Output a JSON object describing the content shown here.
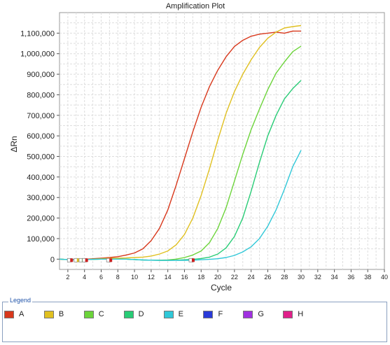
{
  "chart_data": {
    "type": "line",
    "title": "Amplification Plot",
    "xlabel": "Cycle",
    "ylabel": "ΔRn",
    "xlim": [
      1,
      40
    ],
    "ylim": [
      -50000,
      1200000
    ],
    "x_ticks": [
      2,
      4,
      6,
      8,
      10,
      12,
      14,
      16,
      18,
      20,
      22,
      24,
      26,
      28,
      30,
      32,
      34,
      36,
      38,
      40
    ],
    "y_ticks": [
      0,
      100000,
      200000,
      300000,
      400000,
      500000,
      600000,
      700000,
      800000,
      900000,
      1000000,
      1100000
    ],
    "y_tick_labels": [
      "0",
      "100,000",
      "200,000",
      "300,000",
      "400,000",
      "500,000",
      "600,000",
      "700,000",
      "800,000",
      "900,000",
      "1,000,000",
      "1,100,000"
    ],
    "grid": true,
    "x": [
      1,
      2,
      3,
      4,
      5,
      6,
      7,
      8,
      9,
      10,
      11,
      12,
      13,
      14,
      15,
      16,
      17,
      18,
      19,
      20,
      21,
      22,
      23,
      24,
      25,
      26,
      27,
      28,
      29,
      30
    ],
    "series": [
      {
        "name": "A",
        "color": "#d8381c",
        "values": [
          0,
          -2000,
          -3000,
          -1000,
          2000,
          5000,
          8000,
          12000,
          20000,
          30000,
          50000,
          90000,
          150000,
          240000,
          360000,
          490000,
          620000,
          740000,
          840000,
          920000,
          985000,
          1035000,
          1065000,
          1085000,
          1095000,
          1100000,
          1105000,
          1100000,
          1110000,
          1110000
        ]
      },
      {
        "name": "B",
        "color": "#e0c020",
        "values": [
          0,
          -2000,
          -3000,
          -2000,
          0,
          2000,
          4000,
          5000,
          6000,
          8000,
          10000,
          15000,
          25000,
          40000,
          70000,
          120000,
          200000,
          310000,
          440000,
          580000,
          710000,
          815000,
          900000,
          970000,
          1030000,
          1075000,
          1105000,
          1125000,
          1132000,
          1137000
        ]
      },
      {
        "name": "C",
        "color": "#6cd43a",
        "values": [
          0,
          -2000,
          -3000,
          -2000,
          -1000,
          0,
          0,
          0,
          0,
          -2000,
          -4000,
          -5000,
          -5000,
          -4000,
          0,
          8000,
          20000,
          40000,
          80000,
          150000,
          250000,
          380000,
          510000,
          630000,
          730000,
          825000,
          905000,
          960000,
          1010000,
          1037000
        ]
      },
      {
        "name": "D",
        "color": "#28cc76",
        "values": [
          0,
          -2000,
          -3000,
          -2000,
          -1000,
          0,
          0,
          0,
          0,
          -2000,
          -4000,
          -5000,
          -6000,
          -6000,
          -5000,
          -3000,
          -1000,
          3000,
          10000,
          25000,
          55000,
          110000,
          200000,
          330000,
          470000,
          600000,
          700000,
          780000,
          830000,
          870000
        ]
      },
      {
        "name": "E",
        "color": "#30c8d8",
        "values": [
          0,
          -2000,
          -3000,
          -2000,
          -1000,
          0,
          0,
          0,
          0,
          -2000,
          -4000,
          -5000,
          -6000,
          -6000,
          -6000,
          -6000,
          -5000,
          -3000,
          -1000,
          2000,
          8000,
          18000,
          35000,
          60000,
          100000,
          160000,
          240000,
          340000,
          450000,
          530000
        ]
      }
    ],
    "markers": [
      {
        "cycle": 2.2,
        "color": "#cc2020"
      },
      {
        "cycle": 3.0,
        "color": "#e0c020"
      },
      {
        "cycle": 3.6,
        "color": "#6cd43a"
      },
      {
        "cycle": 4.0,
        "color": "#cc2020"
      },
      {
        "cycle": 6.9,
        "color": "#cc2020"
      },
      {
        "cycle": 16.8,
        "color": "#cc2020"
      }
    ]
  },
  "legend": {
    "title": "Legend",
    "items": [
      {
        "label": "A",
        "color": "#d8381c"
      },
      {
        "label": "B",
        "color": "#e0c020"
      },
      {
        "label": "C",
        "color": "#6cd43a"
      },
      {
        "label": "D",
        "color": "#28cc76"
      },
      {
        "label": "E",
        "color": "#30c8d8"
      },
      {
        "label": "F",
        "color": "#2a3ad8"
      },
      {
        "label": "G",
        "color": "#a030e0"
      },
      {
        "label": "H",
        "color": "#e0208a"
      }
    ]
  }
}
